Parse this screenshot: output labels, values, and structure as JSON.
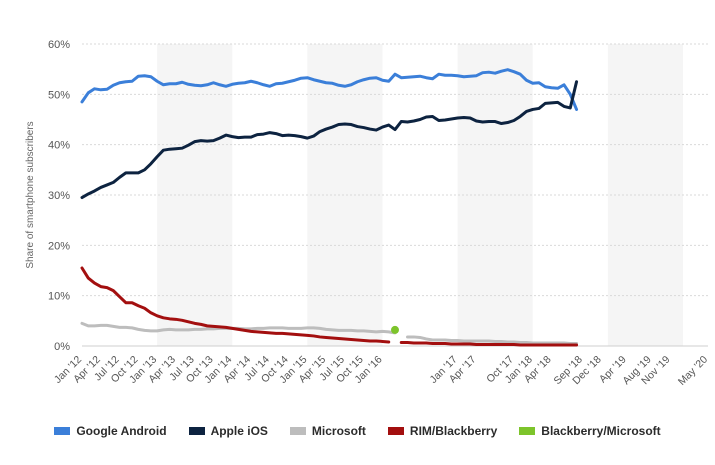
{
  "chart_data": {
    "type": "line",
    "ylabel": "Share of smartphone subscribers",
    "ylim": [
      0,
      60
    ],
    "y_ticks": [
      "0%",
      "10%",
      "20%",
      "30%",
      "40%",
      "50%",
      "60%"
    ],
    "y_unit": "%",
    "grid": true,
    "legend_position": "bottom",
    "x": [
      "Jan '12",
      "Feb '12",
      "Mar '12",
      "Apr '12",
      "May '12",
      "Jun '12",
      "Jul '12",
      "Aug '12",
      "Sep '12",
      "Oct '12",
      "Nov '12",
      "Dec '12",
      "Jan '13",
      "Feb '13",
      "Mar '13",
      "Apr '13",
      "May '13",
      "Jun '13",
      "Jul '13",
      "Aug '13",
      "Sep '13",
      "Oct '13",
      "Nov '13",
      "Dec '13",
      "Jan '14",
      "Feb '14",
      "Mar '14",
      "Apr '14",
      "May '14",
      "Jun '14",
      "Jul '14",
      "Aug '14",
      "Sep '14",
      "Oct '14",
      "Nov '14",
      "Dec '14",
      "Jan '15",
      "Feb '15",
      "Mar '15",
      "Apr '15",
      "May '15",
      "Jun '15",
      "Jul '15",
      "Aug '15",
      "Sep '15",
      "Oct '15",
      "Nov '15",
      "Dec '15",
      "Jan '16",
      "Feb '16",
      "Mar '16",
      "Apr '16",
      "May '16",
      "Jun '16",
      "Jul '16",
      "Aug '16",
      "Sep '16",
      "Oct '16",
      "Nov '16",
      "Dec '16",
      "Jan '17",
      "Feb '17",
      "Mar '17",
      "Apr '17",
      "May '17",
      "Jun '17",
      "Jul '17",
      "Aug '17",
      "Sep '17",
      "Oct '17",
      "Nov '17",
      "Dec '17",
      "Jan '18",
      "Feb '18",
      "Mar '18",
      "Apr '18",
      "May '18",
      "Jun '18",
      "Jul '18",
      "Aug '18",
      "Sep '18",
      "Oct '18",
      "Nov '18",
      "Dec '18",
      "Jan '19",
      "Feb '19",
      "Mar '19",
      "Apr '19",
      "May '19",
      "Jun '19",
      "Jul '19",
      "Aug '19",
      "Sep '19",
      "Oct '19",
      "Nov '19",
      "Dec '19",
      "Jan '20",
      "Feb '20",
      "Mar '20",
      "Apr '20",
      "May '20"
    ],
    "x_tick_labels": [
      "Jan '12",
      "Apr '12",
      "Jul '12",
      "Oct '12",
      "Jan '13",
      "Apr '13",
      "Jul '13",
      "Oct '13",
      "Jan '14",
      "Apr '14",
      "Jul '14",
      "Oct '14",
      "Jan '15",
      "Apr '15",
      "Jul '15",
      "Oct '15",
      "Jan '16",
      "Jan '17",
      "Apr '17",
      "Oct '17",
      "Jan '18",
      "Apr '18",
      "Sep '18",
      "Dec '18",
      "Apr '19",
      "Aug '19",
      "Nov '19",
      "May '20"
    ],
    "series": [
      {
        "name": "Google Android",
        "color": "#3b7fd9",
        "values": [
          48.5,
          50.3,
          51.1,
          50.9,
          51.0,
          51.8,
          52.3,
          52.5,
          52.6,
          53.6,
          53.7,
          53.5,
          52.6,
          51.9,
          52.1,
          52.1,
          52.4,
          52.0,
          51.8,
          51.7,
          51.9,
          52.3,
          51.9,
          51.6,
          52.0,
          52.2,
          52.3,
          52.6,
          52.3,
          51.9,
          51.6,
          52.1,
          52.2,
          52.5,
          52.8,
          53.2,
          53.3,
          52.9,
          52.6,
          52.3,
          52.2,
          51.8,
          51.6,
          51.9,
          52.5,
          52.9,
          53.2,
          53.3,
          52.8,
          52.6,
          54.0,
          53.3,
          53.4,
          53.5,
          53.6,
          53.3,
          53.1,
          54.0,
          53.8,
          53.8,
          53.7,
          53.5,
          53.6,
          53.7,
          54.3,
          54.4,
          54.2,
          54.6,
          54.9,
          54.5,
          54.0,
          52.8,
          52.2,
          52.3,
          51.5,
          51.3,
          51.2,
          51.9,
          50.0,
          47.0,
          null,
          null,
          null,
          null,
          null,
          null,
          null,
          null,
          null,
          null,
          null,
          null,
          null,
          null,
          null,
          null,
          null,
          null,
          null,
          null,
          null
        ]
      },
      {
        "name": "Apple iOS",
        "color": "#0d2340",
        "values": [
          29.5,
          30.2,
          30.8,
          31.5,
          32.0,
          32.5,
          33.5,
          34.4,
          34.4,
          34.4,
          35.0,
          36.2,
          37.6,
          38.9,
          39.1,
          39.2,
          39.3,
          39.9,
          40.6,
          40.8,
          40.7,
          40.8,
          41.3,
          41.9,
          41.6,
          41.4,
          41.5,
          41.5,
          42.0,
          42.1,
          42.4,
          42.2,
          41.8,
          41.9,
          41.8,
          41.6,
          41.3,
          41.7,
          42.6,
          43.1,
          43.5,
          44.0,
          44.1,
          44.0,
          43.6,
          43.4,
          43.1,
          42.9,
          43.5,
          43.9,
          43.0,
          44.6,
          44.5,
          44.7,
          45.0,
          45.5,
          45.6,
          44.8,
          44.9,
          45.1,
          45.3,
          45.4,
          45.3,
          44.7,
          44.5,
          44.6,
          44.6,
          44.2,
          44.4,
          44.8,
          45.6,
          46.6,
          47.0,
          47.2,
          48.2,
          48.3,
          48.4,
          47.6,
          47.3,
          52.5,
          null,
          null,
          null,
          null,
          null,
          null,
          null,
          null,
          null,
          null,
          null,
          null,
          null,
          null,
          null,
          null,
          null,
          null,
          null,
          null,
          null
        ]
      },
      {
        "name": "Microsoft",
        "color": "#bdbdbd",
        "values": [
          4.5,
          4.0,
          4.0,
          4.1,
          4.1,
          3.9,
          3.7,
          3.7,
          3.6,
          3.3,
          3.1,
          3.0,
          3.0,
          3.2,
          3.3,
          3.2,
          3.2,
          3.2,
          3.3,
          3.3,
          3.4,
          3.4,
          3.5,
          3.5,
          3.5,
          3.5,
          3.4,
          3.4,
          3.5,
          3.5,
          3.6,
          3.6,
          3.6,
          3.5,
          3.5,
          3.5,
          3.6,
          3.6,
          3.5,
          3.3,
          3.2,
          3.1,
          3.1,
          3.1,
          3.0,
          3.0,
          2.9,
          2.8,
          2.9,
          2.8,
          2.6,
          null,
          1.8,
          1.8,
          1.7,
          1.4,
          1.2,
          1.2,
          1.2,
          1.1,
          1.1,
          1.0,
          1.0,
          1.0,
          1.0,
          1.0,
          0.9,
          0.9,
          0.8,
          0.8,
          0.7,
          0.7,
          0.6,
          0.6,
          0.6,
          0.6,
          0.6,
          0.6,
          0.5,
          0.5,
          null,
          null,
          null,
          null,
          null,
          null,
          null,
          null,
          null,
          null,
          null,
          null,
          null,
          null,
          null,
          null,
          null,
          null,
          null,
          null,
          null
        ]
      },
      {
        "name": "RIM/Blackberry",
        "color": "#a30f0f",
        "values": [
          15.5,
          13.5,
          12.5,
          11.8,
          11.6,
          11.0,
          9.8,
          8.6,
          8.6,
          8.0,
          7.5,
          6.6,
          6.0,
          5.6,
          5.4,
          5.3,
          5.1,
          4.8,
          4.5,
          4.3,
          4.0,
          3.9,
          3.8,
          3.7,
          3.5,
          3.3,
          3.1,
          2.9,
          2.8,
          2.7,
          2.6,
          2.5,
          2.5,
          2.4,
          2.3,
          2.2,
          2.1,
          2.0,
          1.8,
          1.7,
          1.6,
          1.5,
          1.4,
          1.3,
          1.2,
          1.1,
          1.0,
          1.0,
          0.9,
          0.8,
          null,
          0.7,
          0.7,
          0.6,
          0.6,
          0.6,
          0.5,
          0.5,
          0.5,
          0.4,
          0.4,
          0.4,
          0.4,
          0.3,
          0.3,
          0.3,
          0.3,
          0.3,
          0.3,
          0.3,
          0.2,
          0.2,
          0.2,
          0.2,
          0.2,
          0.2,
          0.2,
          0.2,
          0.2,
          0.2,
          null,
          null,
          null,
          null,
          null,
          null,
          null,
          null,
          null,
          null,
          null,
          null,
          null,
          null,
          null,
          null,
          null,
          null,
          null,
          null,
          null
        ]
      },
      {
        "name": "Blackberry/Microsoft",
        "color": "#7dc42b",
        "values": [
          null,
          null,
          null,
          null,
          null,
          null,
          null,
          null,
          null,
          null,
          null,
          null,
          null,
          null,
          null,
          null,
          null,
          null,
          null,
          null,
          null,
          null,
          null,
          null,
          null,
          null,
          null,
          null,
          null,
          null,
          null,
          null,
          null,
          null,
          null,
          null,
          null,
          null,
          null,
          null,
          null,
          null,
          null,
          null,
          null,
          null,
          null,
          null,
          null,
          null,
          3.2,
          null,
          null,
          null,
          null,
          null,
          null,
          null,
          null,
          null,
          null,
          null,
          null,
          null,
          null,
          null,
          null,
          null,
          null,
          null,
          null,
          null,
          null,
          null,
          null,
          null,
          null,
          null,
          null,
          null,
          null,
          null,
          null,
          null,
          null,
          null,
          null,
          null,
          null,
          null,
          null,
          null,
          null,
          null,
          null,
          null,
          null,
          null,
          null,
          null,
          null
        ]
      }
    ]
  }
}
